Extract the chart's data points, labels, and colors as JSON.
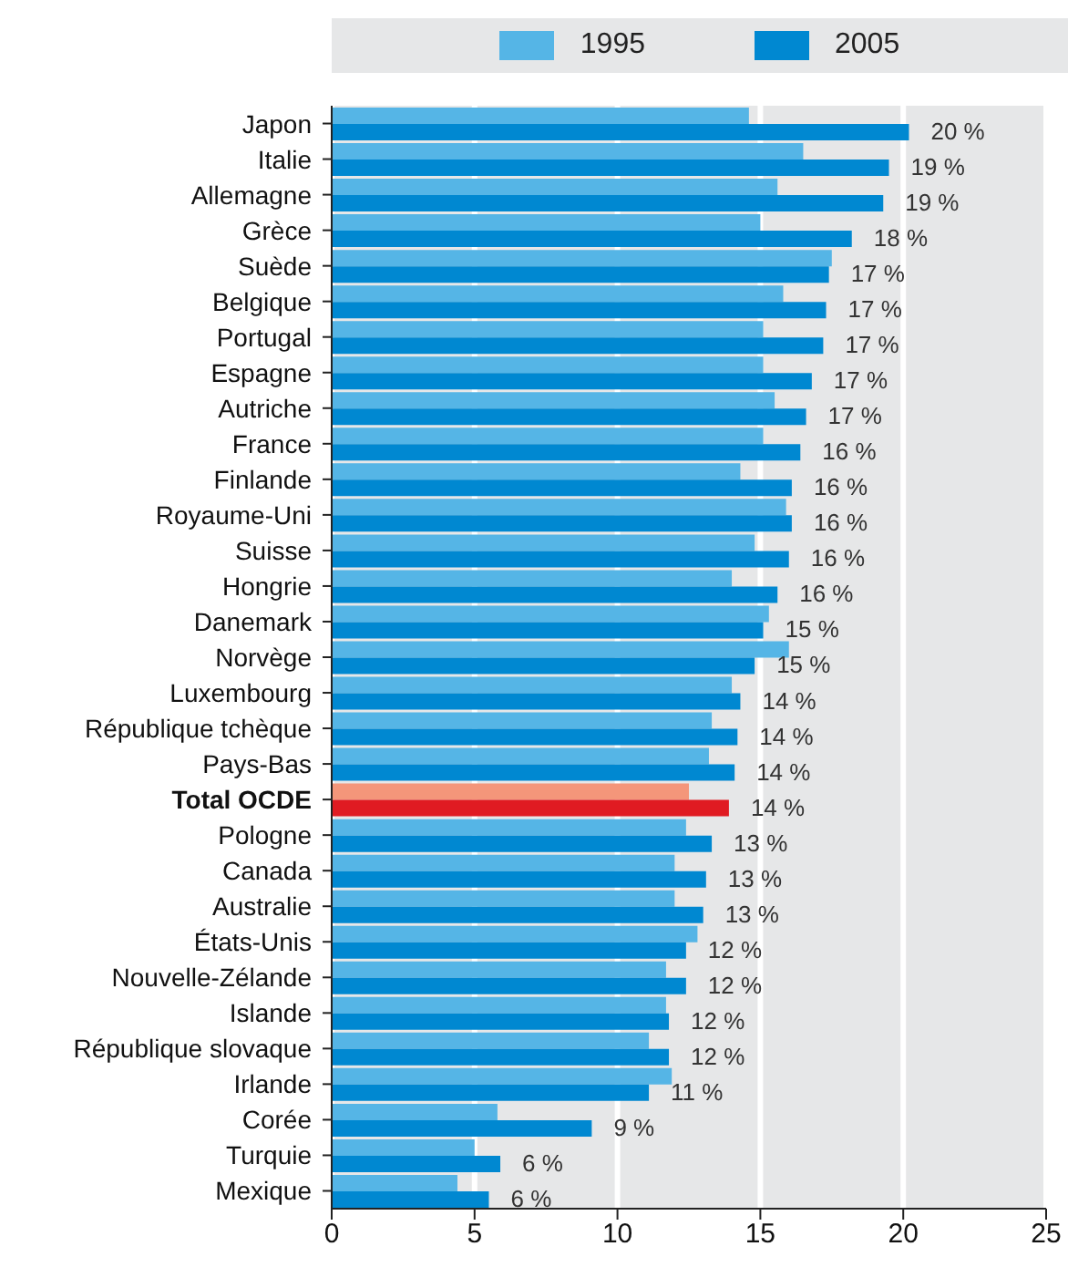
{
  "chart_data": {
    "type": "bar",
    "orientation": "horizontal",
    "categories": [
      "Japon",
      "Italie",
      "Allemagne",
      "Grèce",
      "Suède",
      "Belgique",
      "Portugal",
      "Espagne",
      "Autriche",
      "France",
      "Finlande",
      "Royaume-Uni",
      "Suisse",
      "Hongrie",
      "Danemark",
      "Norvège",
      "Luxembourg",
      "République tchèque",
      "Pays-Bas",
      "Total OCDE",
      "Pologne",
      "Canada",
      "Australie",
      "États-Unis",
      "Nouvelle-Zélande",
      "Islande",
      "République slovaque",
      "Irlande",
      "Corée",
      "Turquie",
      "Mexique"
    ],
    "series": [
      {
        "name": "1995",
        "color": "#55b5e6",
        "colors": [
          "#55b5e6",
          "#55b5e6",
          "#55b5e6",
          "#55b5e6",
          "#55b5e6",
          "#55b5e6",
          "#55b5e6",
          "#55b5e6",
          "#55b5e6",
          "#55b5e6",
          "#55b5e6",
          "#55b5e6",
          "#55b5e6",
          "#55b5e6",
          "#55b5e6",
          "#55b5e6",
          "#55b5e6",
          "#55b5e6",
          "#55b5e6",
          "#f4967a",
          "#55b5e6",
          "#55b5e6",
          "#55b5e6",
          "#55b5e6",
          "#55b5e6",
          "#55b5e6",
          "#55b5e6",
          "#55b5e6",
          "#55b5e6",
          "#55b5e6",
          "#55b5e6"
        ],
        "values": [
          14.6,
          16.5,
          15.6,
          15.0,
          17.5,
          15.8,
          15.1,
          15.1,
          15.5,
          15.1,
          14.3,
          15.9,
          14.8,
          14.0,
          15.3,
          16.0,
          14.0,
          13.3,
          13.2,
          12.5,
          12.4,
          12.0,
          12.0,
          12.8,
          11.7,
          11.7,
          11.1,
          11.9,
          5.8,
          5.0,
          4.4
        ]
      },
      {
        "name": "2005",
        "color": "#0088d1",
        "colors": [
          "#0088d1",
          "#0088d1",
          "#0088d1",
          "#0088d1",
          "#0088d1",
          "#0088d1",
          "#0088d1",
          "#0088d1",
          "#0088d1",
          "#0088d1",
          "#0088d1",
          "#0088d1",
          "#0088d1",
          "#0088d1",
          "#0088d1",
          "#0088d1",
          "#0088d1",
          "#0088d1",
          "#0088d1",
          "#e01b22",
          "#0088d1",
          "#0088d1",
          "#0088d1",
          "#0088d1",
          "#0088d1",
          "#0088d1",
          "#0088d1",
          "#0088d1",
          "#0088d1",
          "#0088d1",
          "#0088d1"
        ],
        "values": [
          20.2,
          19.5,
          19.3,
          18.2,
          17.4,
          17.3,
          17.2,
          16.8,
          16.6,
          16.4,
          16.1,
          16.1,
          16.0,
          15.6,
          15.1,
          14.8,
          14.3,
          14.2,
          14.1,
          13.9,
          13.3,
          13.1,
          13.0,
          12.4,
          12.4,
          11.8,
          11.8,
          11.1,
          9.1,
          5.9,
          5.5
        ],
        "value_labels": [
          "20 %",
          "19 %",
          "19 %",
          "18 %",
          "17 %",
          "17 %",
          "17 %",
          "17 %",
          "17 %",
          "16 %",
          "16 %",
          "16 %",
          "16 %",
          "16 %",
          "15 %",
          "15 %",
          "14 %",
          "14 %",
          "14 %",
          "14 %",
          "13 %",
          "13 %",
          "13 %",
          "12 %",
          "12 %",
          "12 %",
          "12 %",
          "11 %",
          "9 %",
          "6 %",
          "6 %"
        ]
      }
    ],
    "xlim": [
      0,
      25
    ],
    "xticks": [
      0,
      5,
      10,
      15,
      20,
      25
    ],
    "grid": "x",
    "legend": "top"
  }
}
